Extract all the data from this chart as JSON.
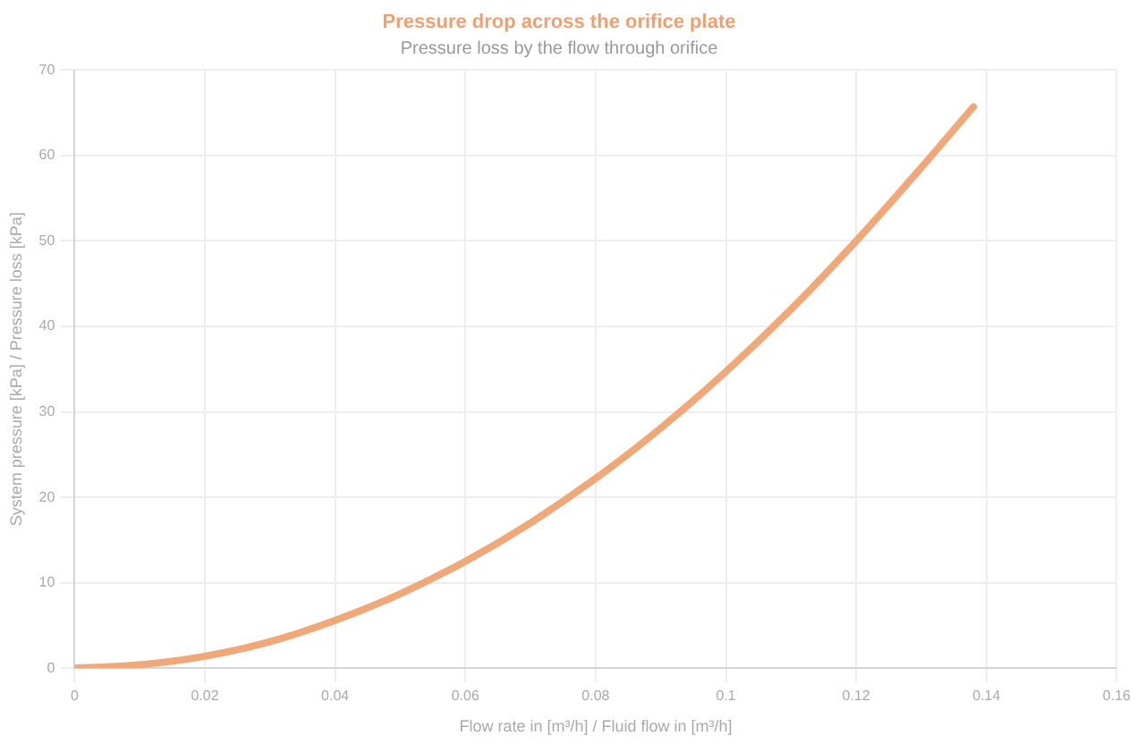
{
  "chart_data": {
    "type": "line",
    "title": "Pressure drop across the orifice plate",
    "subtitle": "Pressure loss by the flow through orifice",
    "xlabel": "Flow rate in [m³/h] / Fluid flow in [m³/h]",
    "ylabel": "System pressure [kPa] / Pressure loss [kPa]",
    "x": [
      0,
      0.01,
      0.02,
      0.03,
      0.04,
      0.05,
      0.06,
      0.07,
      0.08,
      0.09,
      0.1,
      0.11,
      0.12,
      0.13,
      0.138
    ],
    "series": [
      {
        "color": "#f0a878",
        "values": [
          0,
          0.4,
          1.4,
          3.1,
          5.6,
          8.7,
          12.5,
          17,
          22.2,
          28.1,
          34.7,
          42,
          50,
          58.6,
          65.7
        ]
      }
    ],
    "xlim": [
      0,
      0.16
    ],
    "xticks": [
      0,
      0.02,
      0.04,
      0.06,
      0.08,
      0.1,
      0.12,
      0.14,
      0.16
    ],
    "ylim": [
      0,
      70
    ],
    "yticks": [
      0,
      10,
      20,
      30,
      40,
      50,
      60,
      70
    ],
    "grid": true,
    "legend": false,
    "marker": "none",
    "line_style": "solid"
  }
}
